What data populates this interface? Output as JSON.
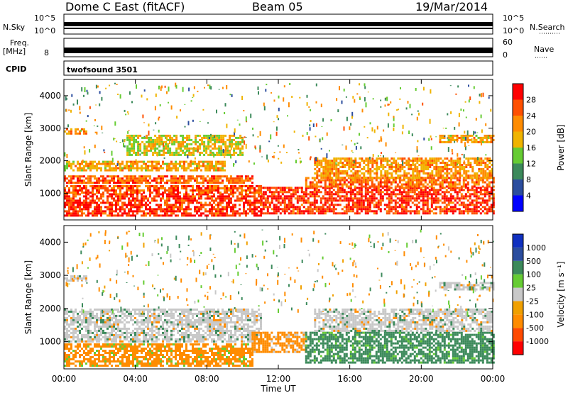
{
  "header": {
    "station": "Dome C East (fitACF)",
    "beam": "Beam 05",
    "date": "19/Mar/2014"
  },
  "strip_labels": {
    "nsky": "N.Sky",
    "nsky_ticks": [
      "10^5",
      "10^0"
    ],
    "nsearch": "N.Search",
    "nsearch_ticks": [
      "10^5",
      "10^0"
    ],
    "freq": "Freq.",
    "freq_unit": "[MHz]",
    "freq_ticks": [
      "8"
    ],
    "nave": "Nave",
    "nave_ticks": [
      "60",
      "0"
    ],
    "cpid": "CPID",
    "cpid_value": "twofsound 3501"
  },
  "colors": {
    "power": [
      "#0000ff",
      "#2b4d9e",
      "#3c8a5b",
      "#66cc33",
      "#f0b400",
      "#ff8c00",
      "#ff5000",
      "#ff0000"
    ],
    "velocity": [
      "#ff0000",
      "#ff4a00",
      "#ff8c00",
      "#f0a000",
      "#c8c8c8",
      "#66cc33",
      "#3c8a5b",
      "#2b4d9e",
      "#1030c0"
    ]
  },
  "chart_data": [
    {
      "type": "heatmap",
      "name": "power",
      "ylabel": "Slant Range [km]",
      "yticks": [
        "1000",
        "2000",
        "3000",
        "4000"
      ],
      "ylim": [
        180,
        4500
      ],
      "xlim": [
        0,
        24
      ],
      "xticks": [
        "00:00",
        "04:00",
        "08:00",
        "12:00",
        "16:00",
        "20:00",
        "00:00"
      ],
      "xlabel": "Time UT",
      "colorbar_label": "Power [dB]",
      "colorbar_ticks": [
        "4",
        "8",
        "12",
        "16",
        "20",
        "24",
        "28"
      ],
      "bands": [
        {
          "t0": 0.0,
          "t1": 11.0,
          "r0": 300,
          "r1": 1000,
          "value": 28
        },
        {
          "t0": 0.0,
          "t1": 11.0,
          "r0": 1000,
          "r1": 1250,
          "value": 26
        },
        {
          "t0": 0.0,
          "t1": 10.5,
          "r0": 1300,
          "r1": 1550,
          "value": 25
        },
        {
          "t0": 0.0,
          "t1": 9.0,
          "r0": 1700,
          "r1": 2000,
          "value": 20
        },
        {
          "t0": 0.0,
          "t1": 1.2,
          "r0": 2850,
          "r1": 3000,
          "value": 22
        },
        {
          "t0": 3.5,
          "t1": 10.0,
          "r0": 2200,
          "r1": 2800,
          "value": 17
        },
        {
          "t0": 11.0,
          "t1": 24.0,
          "r0": 350,
          "r1": 1200,
          "value": 28
        },
        {
          "t0": 13.5,
          "t1": 24.0,
          "r0": 1200,
          "r1": 1500,
          "value": 24
        },
        {
          "t0": 14.0,
          "t1": 24.0,
          "r0": 1500,
          "r1": 2100,
          "value": 21
        },
        {
          "t0": 21.0,
          "t1": 24.0,
          "r0": 2600,
          "r1": 2800,
          "value": 20
        }
      ]
    },
    {
      "type": "heatmap",
      "name": "velocity",
      "ylabel": "Slant Range [km]",
      "yticks": [
        "1000",
        "2000",
        "3000",
        "4000"
      ],
      "ylim": [
        180,
        4500
      ],
      "xlim": [
        0,
        24
      ],
      "xticks": [
        "00:00",
        "04:00",
        "08:00",
        "12:00",
        "16:00",
        "20:00",
        "00:00"
      ],
      "xlabel": "Time UT",
      "colorbar_label": "Velocity [m s⁻¹]",
      "colorbar_ticks": [
        "1000",
        "500",
        "100",
        "25",
        "-25",
        "-100",
        "-500",
        "-1000"
      ],
      "bands": [
        {
          "t0": 0.0,
          "t1": 10.5,
          "r0": 300,
          "r1": 950,
          "value": -120
        },
        {
          "t0": 0.0,
          "t1": 11.0,
          "r0": 1000,
          "r1": 2000,
          "value": 0
        },
        {
          "t0": 0.0,
          "t1": 1.2,
          "r0": 2850,
          "r1": 3000,
          "value": 0
        },
        {
          "t0": 10.5,
          "t1": 13.5,
          "r0": 700,
          "r1": 1300,
          "value": -200
        },
        {
          "t0": 13.5,
          "t1": 24.0,
          "r0": 350,
          "r1": 1300,
          "value": 150
        },
        {
          "t0": 14.0,
          "t1": 24.0,
          "r0": 1300,
          "r1": 2000,
          "value": 0
        },
        {
          "t0": 21.0,
          "t1": 24.0,
          "r0": 2600,
          "r1": 2800,
          "value": 0
        }
      ]
    }
  ]
}
